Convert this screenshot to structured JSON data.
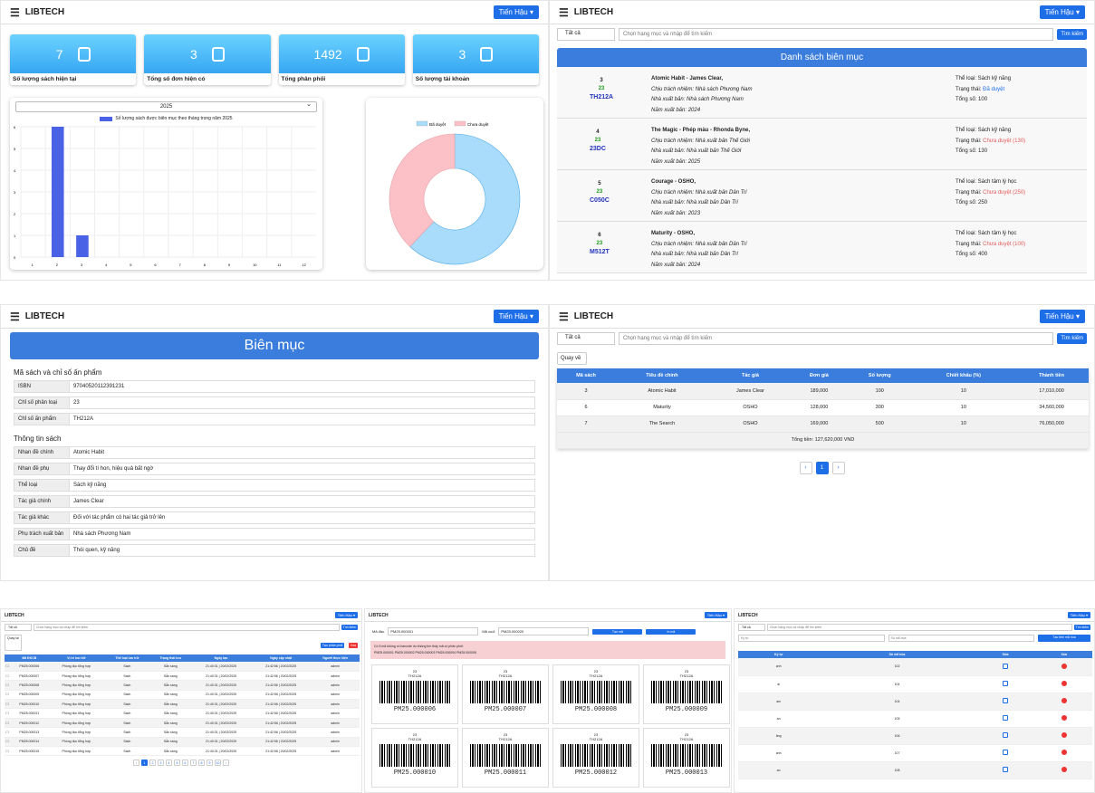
{
  "brand": "LIBTECH",
  "user": "Tiến Hậu ▾",
  "stats": [
    {
      "value": "7",
      "label": "Số lượng sách hiện tại"
    },
    {
      "value": "3",
      "label": "Tổng số đơn hiện có"
    },
    {
      "value": "1492",
      "label": "Tổng phân phối"
    },
    {
      "value": "3",
      "label": "Số lượng tài khoản"
    }
  ],
  "chart_data": [
    {
      "type": "bar",
      "year_select": "2025",
      "legend": "Số lượng sách được biên mục theo tháng trong năm 2025",
      "categories": [
        "1",
        "2",
        "3",
        "4",
        "5",
        "6",
        "7",
        "8",
        "9",
        "10",
        "11",
        "12"
      ],
      "values": [
        0,
        6,
        1,
        0,
        0,
        0,
        0,
        0,
        0,
        0,
        0,
        0
      ],
      "ylim": [
        0,
        6
      ],
      "yticks": [
        "0",
        "1",
        "2",
        "3",
        "4",
        "5",
        "6"
      ],
      "color": "#4a63e6"
    },
    {
      "type": "pie",
      "legend": [
        "Đã duyệt",
        "Chưa duyệt"
      ],
      "values": [
        62,
        38
      ],
      "colors": [
        "#a9dcfb",
        "#fcc1c7"
      ]
    }
  ],
  "search": {
    "category": "Tất cả",
    "placeholder": "Chọn hạng mục và nhập để tìm kiếm",
    "button": "Tìm kiếm"
  },
  "catalog": {
    "title": "Danh sách biên mục",
    "items": [
      {
        "id": "3",
        "cls": "23",
        "code": "TH212A",
        "title": "Atomic Habit - James Clear,",
        "resp": "Chịu trách nhiệm: Nhà sách Phương Nam",
        "pub": "Nhà xuất bản: Nhà sách Phương Nam",
        "year": "Năm xuất bản: 2024",
        "genre": "Thể loại: Sách kỹ năng",
        "status_lbl": "Trạng thái:",
        "status": "Đã duyệt",
        "ok": true,
        "total": "Tổng số: 100"
      },
      {
        "id": "4",
        "cls": "23",
        "code": "23DC",
        "title": "The Magic - Phép màu - Rhonda Byne,",
        "resp": "Chịu trách nhiệm: Nhà xuất bản Thế Giới",
        "pub": "Nhà xuất bản: Nhà xuất bản Thế Giới",
        "year": "Năm xuất bản: 2025",
        "genre": "Thể loại: Sách kỹ năng",
        "status_lbl": "Trạng thái:",
        "status": "Chưa duyệt (130)",
        "ok": false,
        "total": "Tổng số: 130"
      },
      {
        "id": "5",
        "cls": "23",
        "code": "C050C",
        "title": "Courage - OSHO,",
        "resp": "Chịu trách nhiệm: Nhà xuất bản Dân Trí",
        "pub": "Nhà xuất bản: Nhà xuất bản Dân Trí",
        "year": "Năm xuất bản: 2023",
        "genre": "Thể loại: Sách tâm lý học",
        "status_lbl": "Trạng thái:",
        "status": "Chưa duyệt (250)",
        "ok": false,
        "total": "Tổng số: 250"
      },
      {
        "id": "6",
        "cls": "23",
        "code": "M512T",
        "title": "Maturity - OSHO,",
        "resp": "Chịu trách nhiệm: Nhà xuất bản Dân Trí",
        "pub": "Nhà xuất bản: Nhà xuất bản Dân Trí",
        "year": "Năm xuất bản: 2024",
        "genre": "Thể loại: Sách tâm lý học",
        "status_lbl": "Trạng thái:",
        "status": "Chưa duyệt (100)",
        "ok": false,
        "total": "Tổng số: 400"
      }
    ]
  },
  "bienmuc": {
    "title": "Biên mục",
    "sec1": "Mã sách và chỉ số ấn phẩm",
    "fields1": [
      {
        "l": "ISBN",
        "v": "9704052011239123​1"
      },
      {
        "l": "Chỉ số phân loại",
        "v": "23"
      },
      {
        "l": "Chỉ số ấn phẩm",
        "v": "TH212A"
      }
    ],
    "sec2": "Thông tin sách",
    "fields2": [
      {
        "l": "Nhan đề chính",
        "v": "Atomic Habit"
      },
      {
        "l": "Nhan đề phụ",
        "v": "Thay đổi tí hon, hiệu quả bất ngờ"
      },
      {
        "l": "Thể loại",
        "v": "Sách kỹ năng"
      },
      {
        "l": "Tác giả chính",
        "v": "James Clear"
      },
      {
        "l": "Tác giả khác",
        "v": "Đối với tác phẩm có hai tác giả trở lên"
      },
      {
        "l": "Phụ trách xuất bản",
        "v": "Nhà sách Phương Nam"
      },
      {
        "l": "Chủ đề",
        "v": "Thói quen, kỹ năng"
      }
    ]
  },
  "order": {
    "back": "Quay về",
    "headers": [
      "Mã sách",
      "Tiêu đề chính",
      "Tác giả",
      "Đơn giá",
      "Số lượng",
      "Chiết khấu (%)",
      "Thành tiền"
    ],
    "rows": [
      [
        "3",
        "Atomic Habit",
        "James Clear",
        "189,000",
        "100",
        "10",
        "17,010,000"
      ],
      [
        "6",
        "Maturity",
        "OSHO",
        "128,000",
        "300",
        "10",
        "34,560,000"
      ],
      [
        "7",
        "The Search",
        "OSHO",
        "169,000",
        "500",
        "10",
        "76,050,000"
      ]
    ],
    "total": "Tổng tiền: 127,620,000 VND",
    "pages": [
      "‹",
      "1",
      "›"
    ]
  },
  "dist": {
    "back": "Quay lại",
    "create": "Tạo phân phối",
    "delete": "Xóa",
    "search_btn": "Tìm kiếm",
    "headers": [
      "",
      "Mã ĐKCB",
      "Vị trí lưu trữ",
      "Thể loại lưu trữ",
      "Trạng thái lưu",
      "Ngày tạo",
      "Ngày cập nhật",
      "Người thực hiện"
    ],
    "rows": [
      [
        "PM25.000006"
      ],
      [
        "PM25.000007"
      ],
      [
        "PM25.000008"
      ],
      [
        "PM25.000009"
      ],
      [
        "PM25.000010"
      ],
      [
        "PM25.000011"
      ],
      [
        "PM25.000012"
      ],
      [
        "PM25.000013"
      ],
      [
        "PM25.000014"
      ],
      [
        "PM25.000015"
      ]
    ],
    "loc": "Phòng đọc tổng hợp",
    "kind": "Sách",
    "state": "Sẵn sàng",
    "created": "21:40:31 | 20/02/2025",
    "updated": "21:42:56 | 20/02/2025",
    "by": "admin",
    "pages": [
      "‹",
      "1",
      "2",
      "3",
      "4",
      "5",
      "6",
      "7",
      "8",
      "9",
      "10",
      "›"
    ]
  },
  "barcode": {
    "from_lbl": "Mã đầu",
    "from": "PM25.000001",
    "to_lbl": "Mã cuối",
    "to": "PM25.000020",
    "create": "Tạo mã",
    "print": "In mã",
    "warn": "Có 5 mã không có barcode do không tìm thấy mã có phân phối:",
    "missing": "PM25.000001    PM25.000002    PM25.000003    PM25.000004    PM25.000005",
    "cls": "23",
    "code": "TH212A",
    "codes": [
      "PM25.000006",
      "PM25.000007",
      "PM25.000008",
      "PM25.000009",
      "PM25.000010",
      "PM25.000011",
      "PM25.000012",
      "PM25.000013"
    ]
  },
  "cat": {
    "f1": "Ký tự",
    "f2": "Số mã hóa",
    "btn": "Tạo tiền mã hóa",
    "headers": [
      "Ký tự",
      "Số mã hóa",
      "Sửa",
      "Xóa"
    ],
    "rows": [
      [
        "ạnh",
        "102"
      ],
      [
        "ai",
        "104"
      ],
      [
        "am",
        "104"
      ],
      [
        "an",
        "105"
      ],
      [
        "ăng",
        "106"
      ],
      [
        "anh",
        "107"
      ],
      [
        "ao",
        "108"
      ]
    ]
  }
}
